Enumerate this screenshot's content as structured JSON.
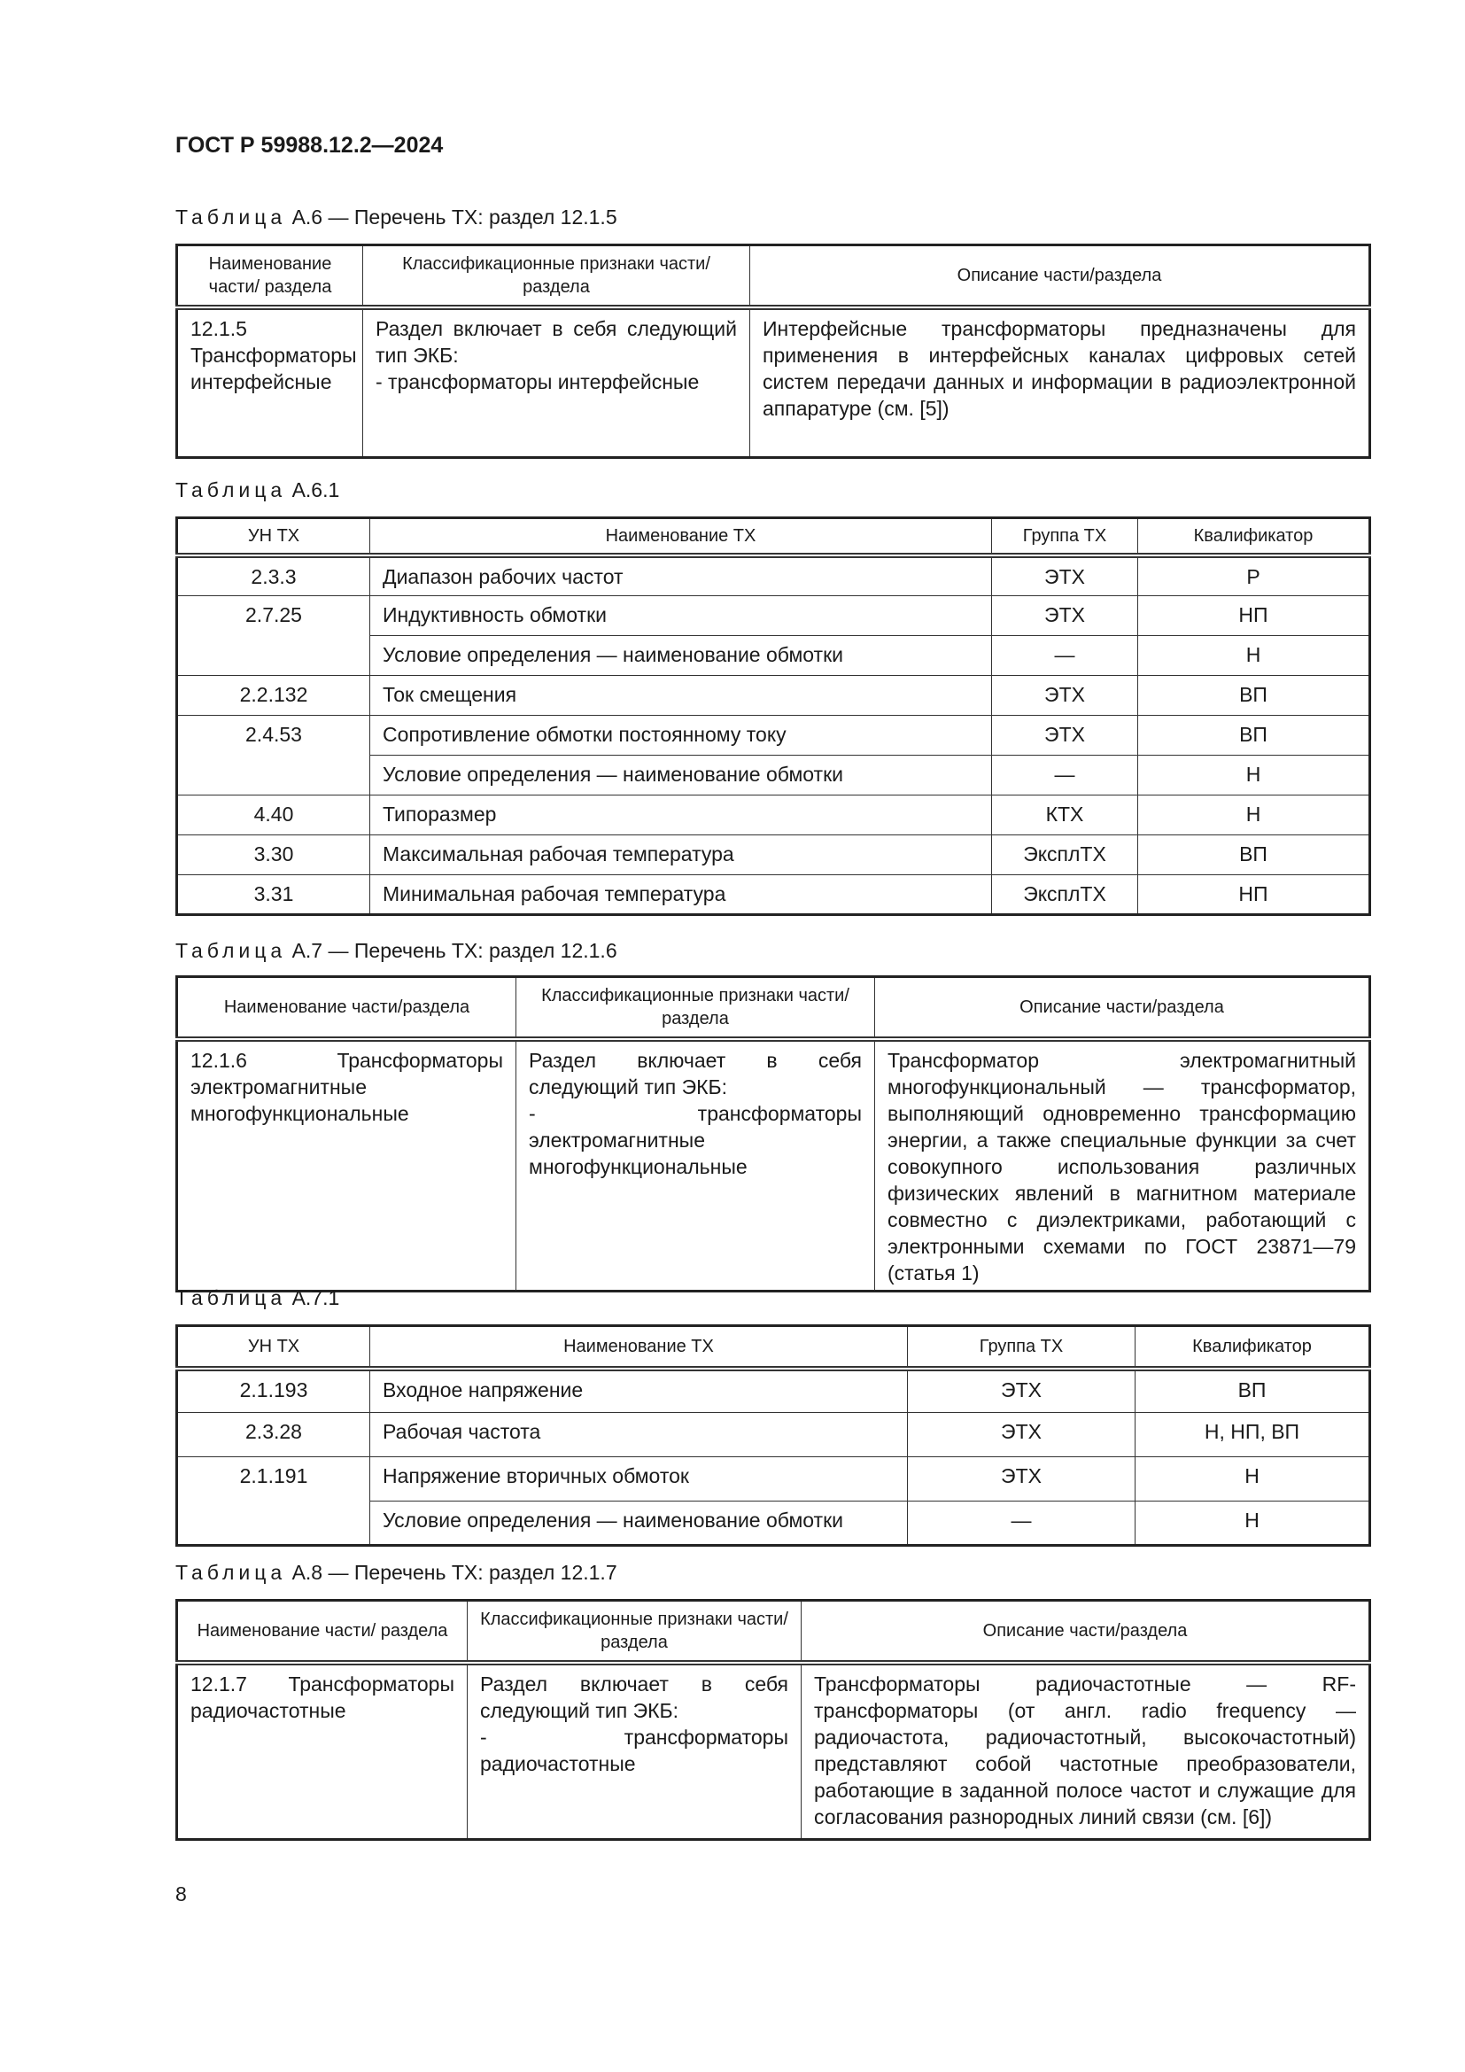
{
  "header": {
    "title": "ГОСТ Р 59988.12.2—2024"
  },
  "tables": [
    {
      "caption_label": "Таблица",
      "caption_rest": " А.6 — Перечень ТХ: раздел 12.1.5",
      "kind": "section",
      "columns": [
        "Наименование части/ раздела",
        "Классификационные признаки части/ раздела",
        "Описание части/раздела"
      ],
      "rows": [
        [
          "12.1.5 Трансформаторы интерфейсные",
          "Раздел включает в себя следующий тип ЭКБ:\n- трансформаторы интерфейсные",
          "Интерфейсные трансформаторы предназначены для применения в интерфейсных каналах цифровых сетей систем передачи данных и информации в радиоэлектронной аппаратуре (см. [5])"
        ]
      ]
    },
    {
      "caption_label": "Таблица",
      "caption_rest": " А.6.1",
      "kind": "list",
      "columns": [
        "УН ТХ",
        "Наименование ТХ",
        "Группа ТХ",
        "Квалификатор"
      ],
      "rows": [
        [
          "2.3.3",
          "Диапазон рабочих частот",
          "ЭТХ",
          "Р"
        ],
        [
          "2.7.25",
          "Индуктивность обмотки",
          "ЭТХ",
          "НП"
        ],
        [
          null,
          "Условие определения — наименование обмотки",
          "—",
          "Н"
        ],
        [
          "2.2.132",
          "Ток смещения",
          "ЭТХ",
          "ВП"
        ],
        [
          "2.4.53",
          "Сопротивление обмотки постоянному току",
          "ЭТХ",
          "ВП"
        ],
        [
          null,
          "Условие определения — наименование обмотки",
          "—",
          "Н"
        ],
        [
          "4.40",
          "Типоразмер",
          "КТХ",
          "Н"
        ],
        [
          "3.30",
          "Максимальная рабочая температура",
          "ЭксплТХ",
          "ВП"
        ],
        [
          "3.31",
          "Минимальная рабочая температура",
          "ЭксплТХ",
          "НП"
        ]
      ]
    },
    {
      "caption_label": "Таблица",
      "caption_rest": " А.7 — Перечень ТХ: раздел 12.1.6",
      "kind": "section",
      "columns": [
        "Наименование части/раздела",
        "Классификационные признаки части/раздела",
        "Описание части/раздела"
      ],
      "rows": [
        [
          "12.1.6 Трансформаторы электромагнитные многофункциональные",
          "Раздел включает в себя следующий тип ЭКБ:\n- трансформаторы электромагнитные многофункциональные",
          "Трансформатор электромагнитный многофункциональный — трансформатор, выполняющий одновременно трансформацию энергии, а также специальные функции за счет совокупного использования различных физических явлений в магнитном материале совместно с диэлектриками, работающий с электронными схемами по ГОСТ 23871—79 (статья 1)"
        ]
      ]
    },
    {
      "caption_label": "Таблица",
      "caption_rest": " А.7.1",
      "kind": "list",
      "columns": [
        "УН ТХ",
        "Наименование ТХ",
        "Группа ТХ",
        "Квалификатор"
      ],
      "rows": [
        [
          "2.1.193",
          "Входное напряжение",
          "ЭТХ",
          "ВП"
        ],
        [
          "2.3.28",
          "Рабочая частота",
          "ЭТХ",
          "Н, НП, ВП"
        ],
        [
          "2.1.191",
          "Напряжение вторичных обмоток",
          "ЭТХ",
          "Н"
        ],
        [
          null,
          "Условие определения — наименование обмотки",
          "—",
          "Н"
        ]
      ]
    },
    {
      "caption_label": "Таблица",
      "caption_rest": " А.8 — Перечень ТХ: раздел 12.1.7",
      "kind": "section",
      "columns": [
        "Наименование части/ раздела",
        "Классификационные признаки части/раздела",
        "Описание части/раздела"
      ],
      "rows": [
        [
          "12.1.7 Трансформаторы радиочастотные",
          "Раздел включает в себя следующий тип ЭКБ:\n- трансформаторы радиочастотные",
          "Трансформаторы радиочастотные — RF-трансформаторы (от англ. radio frequency — радиочастота, радиочастотный, высокочастотный) представляют собой частотные преобразователи, работающие в заданной полосе частот и служащие для согласования разнородных линий связи (см. [6])"
        ]
      ]
    }
  ],
  "footer": {
    "page_number": "8"
  }
}
